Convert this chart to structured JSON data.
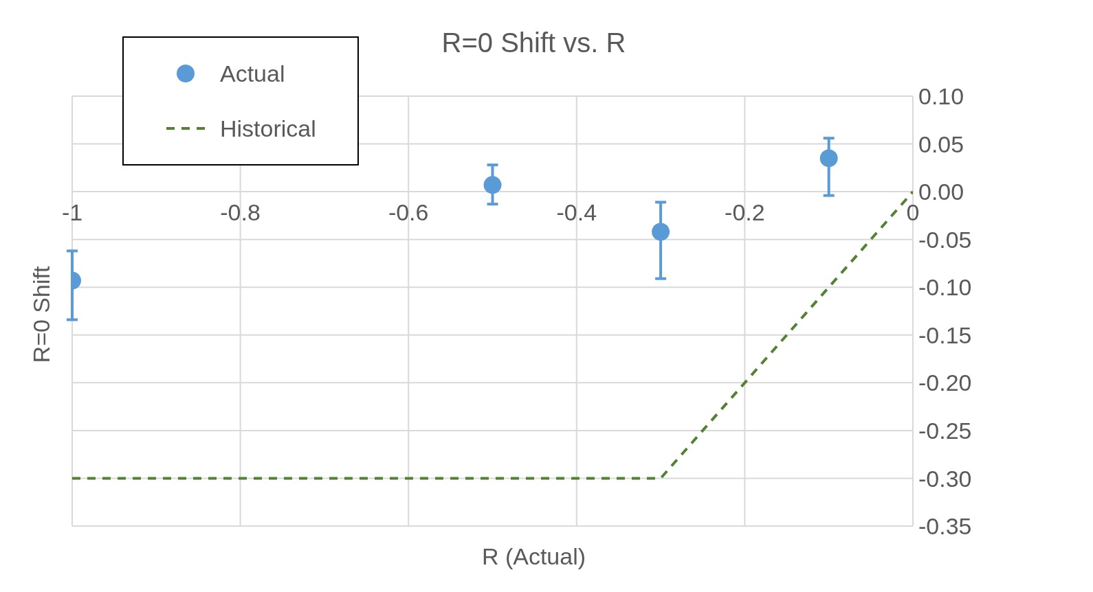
{
  "chart_data": {
    "type": "scatter",
    "title": "R=0 Shift vs. R",
    "xlabel": "R (Actual)",
    "ylabel": "R=0 Shift",
    "series": [
      {
        "name": "Actual",
        "color": "#5b9bd5",
        "x": [
          -1,
          -0.5,
          -0.3,
          -0.1
        ],
        "values": [
          -0.093,
          0.007,
          -0.042,
          0.035
        ],
        "errors": [
          [
            -0.134,
            -0.062
          ],
          [
            -0.013,
            0.028
          ],
          [
            -0.091,
            -0.011
          ],
          [
            -0.004,
            0.056
          ]
        ],
        "marker": "circle"
      },
      {
        "name": "Historical",
        "type": "line",
        "color": "#548235",
        "x": [
          -1,
          -0.3,
          0
        ],
        "values": [
          -0.3,
          -0.3,
          0
        ],
        "line_style": "dashed",
        "marker": "none"
      }
    ],
    "xlim": [
      -1,
      0
    ],
    "xticks": [
      -1,
      -0.8,
      -0.6,
      -0.4,
      -0.2,
      0
    ],
    "ylim": [
      -0.35,
      0.1
    ],
    "yticks": [
      {
        "value": 0.1,
        "label": "0.10"
      },
      {
        "value": 0.05,
        "label": "0.05"
      },
      {
        "value": 0,
        "label": "0.00"
      },
      {
        "value": -0.05,
        "label": "-0.05"
      },
      {
        "value": -0.1,
        "label": "-0.10"
      },
      {
        "value": -0.15,
        "label": "-0.15"
      },
      {
        "value": -0.2,
        "label": "-0.20"
      },
      {
        "value": -0.25,
        "label": "-0.25"
      },
      {
        "value": -0.3,
        "label": "-0.30"
      },
      {
        "value": -0.35,
        "label": "-0.35"
      }
    ],
    "grid": true,
    "legend": "top left"
  }
}
